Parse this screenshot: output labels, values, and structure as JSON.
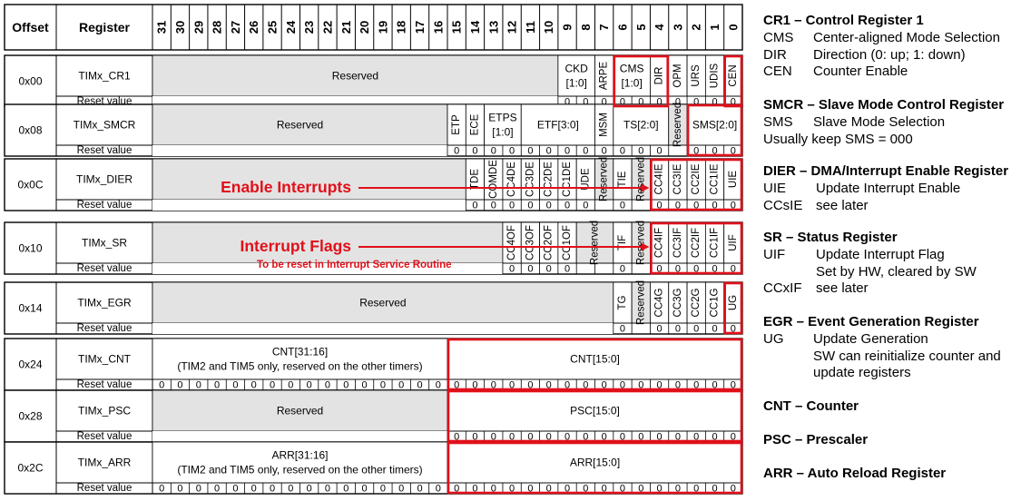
{
  "header": {
    "offset": "Offset",
    "register": "Register",
    "bits": [
      "31",
      "30",
      "29",
      "28",
      "27",
      "26",
      "25",
      "24",
      "23",
      "22",
      "21",
      "20",
      "19",
      "18",
      "17",
      "16",
      "15",
      "14",
      "13",
      "12",
      "11",
      "10",
      "9",
      "8",
      "7",
      "6",
      "5",
      "4",
      "3",
      "2",
      "1",
      "0"
    ]
  },
  "reset_label": "Reset value",
  "rows": [
    {
      "offset": "0x00",
      "name": "TIMx_CR1",
      "fields": [
        {
          "from": 31,
          "to": 10,
          "label": "Reserved",
          "reserved": true
        },
        {
          "from": 9,
          "to": 8,
          "label": "CKD [1:0]"
        },
        {
          "from": 7,
          "to": 7,
          "label": "ARPE",
          "vertical": true
        },
        {
          "from": 6,
          "to": 5,
          "label": "CMS [1:0]"
        },
        {
          "from": 4,
          "to": 4,
          "label": "DIR",
          "vertical": true
        },
        {
          "from": 3,
          "to": 3,
          "label": "OPM",
          "vertical": true
        },
        {
          "from": 2,
          "to": 2,
          "label": "URS",
          "vertical": true
        },
        {
          "from": 1,
          "to": 1,
          "label": "UDIS",
          "vertical": true
        },
        {
          "from": 0,
          "to": 0,
          "label": "CEN",
          "vertical": true
        }
      ],
      "reset": {
        "from": 9,
        "to": 0,
        "value": "0"
      }
    },
    {
      "offset": "0x08",
      "name": "TIMx_SMCR",
      "fields": [
        {
          "from": 31,
          "to": 16,
          "label": "Reserved",
          "reserved": true
        },
        {
          "from": 15,
          "to": 15,
          "label": "ETP",
          "vertical": true
        },
        {
          "from": 14,
          "to": 14,
          "label": "ECE",
          "vertical": true
        },
        {
          "from": 13,
          "to": 12,
          "label": "ETPS [1:0]"
        },
        {
          "from": 11,
          "to": 8,
          "label": "ETF[3:0]"
        },
        {
          "from": 7,
          "to": 7,
          "label": "MSM",
          "vertical": true
        },
        {
          "from": 6,
          "to": 4,
          "label": "TS[2:0]"
        },
        {
          "from": 3,
          "to": 3,
          "label": "Reserved",
          "vertical": true,
          "reserved": true
        },
        {
          "from": 2,
          "to": 0,
          "label": "SMS[2:0]"
        }
      ],
      "reset": {
        "from": 15,
        "to": 0,
        "value": "0",
        "skip": [
          3
        ]
      }
    },
    {
      "offset": "0x0C",
      "name": "TIMx_DIER",
      "fields": [
        {
          "from": 31,
          "to": 15,
          "label": "Reserved",
          "reserved": true,
          "hide_label": true
        },
        {
          "from": 14,
          "to": 14,
          "label": "TDE",
          "vertical": true
        },
        {
          "from": 13,
          "to": 13,
          "label": "COMDE",
          "vertical": true
        },
        {
          "from": 12,
          "to": 12,
          "label": "CC4DE",
          "vertical": true
        },
        {
          "from": 11,
          "to": 11,
          "label": "CC3DE",
          "vertical": true
        },
        {
          "from": 10,
          "to": 10,
          "label": "CC2DE",
          "vertical": true
        },
        {
          "from": 9,
          "to": 9,
          "label": "CC1DE",
          "vertical": true
        },
        {
          "from": 8,
          "to": 8,
          "label": "UDE",
          "vertical": true
        },
        {
          "from": 7,
          "to": 7,
          "label": "Reserved",
          "vertical": true,
          "reserved": true
        },
        {
          "from": 6,
          "to": 6,
          "label": "TIE",
          "vertical": true
        },
        {
          "from": 5,
          "to": 5,
          "label": "Reserved",
          "vertical": true,
          "reserved": true
        },
        {
          "from": 4,
          "to": 4,
          "label": "CC4IE",
          "vertical": true
        },
        {
          "from": 3,
          "to": 3,
          "label": "CC3IE",
          "vertical": true
        },
        {
          "from": 2,
          "to": 2,
          "label": "CC2IE",
          "vertical": true
        },
        {
          "from": 1,
          "to": 1,
          "label": "CC1IE",
          "vertical": true
        },
        {
          "from": 0,
          "to": 0,
          "label": "UIE",
          "vertical": true
        }
      ],
      "reset": {
        "from": 14,
        "to": 0,
        "value": "0",
        "skip": [
          7,
          5
        ]
      }
    },
    {
      "offset": "0x10",
      "name": "TIMx_SR",
      "fields": [
        {
          "from": 31,
          "to": 13,
          "label": "Reserved",
          "reserved": true,
          "hide_label": true
        },
        {
          "from": 12,
          "to": 12,
          "label": "CC4OF",
          "vertical": true
        },
        {
          "from": 11,
          "to": 11,
          "label": "CC3OF",
          "vertical": true
        },
        {
          "from": 10,
          "to": 10,
          "label": "CC2OF",
          "vertical": true
        },
        {
          "from": 9,
          "to": 9,
          "label": "CC1OF",
          "vertical": true
        },
        {
          "from": 8,
          "to": 7,
          "label": "Reserved",
          "vertical": true,
          "reserved": true
        },
        {
          "from": 6,
          "to": 6,
          "label": "TIF",
          "vertical": true
        },
        {
          "from": 5,
          "to": 5,
          "label": "Reserved",
          "vertical": true,
          "reserved": true
        },
        {
          "from": 4,
          "to": 4,
          "label": "CC4IF",
          "vertical": true
        },
        {
          "from": 3,
          "to": 3,
          "label": "CC3IF",
          "vertical": true
        },
        {
          "from": 2,
          "to": 2,
          "label": "CC2IF",
          "vertical": true
        },
        {
          "from": 1,
          "to": 1,
          "label": "CC1IF",
          "vertical": true
        },
        {
          "from": 0,
          "to": 0,
          "label": "UIF",
          "vertical": true
        }
      ],
      "reset": {
        "from": 12,
        "to": 0,
        "value": "0",
        "skip": [
          8,
          7,
          5
        ]
      }
    },
    {
      "offset": "0x14",
      "name": "TIMx_EGR",
      "fields": [
        {
          "from": 31,
          "to": 7,
          "label": "Reserved",
          "reserved": true
        },
        {
          "from": 6,
          "to": 6,
          "label": "TG",
          "vertical": true
        },
        {
          "from": 5,
          "to": 5,
          "label": "Reserved",
          "vertical": true,
          "reserved": true
        },
        {
          "from": 4,
          "to": 4,
          "label": "CC4G",
          "vertical": true
        },
        {
          "from": 3,
          "to": 3,
          "label": "CC3G",
          "vertical": true
        },
        {
          "from": 2,
          "to": 2,
          "label": "CC2G",
          "vertical": true
        },
        {
          "from": 1,
          "to": 1,
          "label": "CC1G",
          "vertical": true
        },
        {
          "from": 0,
          "to": 0,
          "label": "UG",
          "vertical": true
        }
      ],
      "reset": {
        "from": 6,
        "to": 0,
        "value": "0",
        "skip": [
          5
        ]
      }
    },
    {
      "offset": "0x24",
      "name": "TIMx_CNT",
      "fields": [
        {
          "from": 31,
          "to": 16,
          "label": "CNT[31:16]",
          "sub": "(TIM2 and TIM5 only, reserved on the other timers)"
        },
        {
          "from": 15,
          "to": 0,
          "label": "CNT[15:0]"
        }
      ],
      "reset": {
        "from": 31,
        "to": 0,
        "value": "0"
      }
    },
    {
      "offset": "0x28",
      "name": "TIMx_PSC",
      "fields": [
        {
          "from": 31,
          "to": 16,
          "label": "Reserved",
          "reserved": true
        },
        {
          "from": 15,
          "to": 0,
          "label": "PSC[15:0]"
        }
      ],
      "reset": {
        "from": 15,
        "to": 0,
        "value": "0"
      }
    },
    {
      "offset": "0x2C",
      "name": "TIMx_ARR",
      "fields": [
        {
          "from": 31,
          "to": 16,
          "label": "ARR[31:16]",
          "sub": "(TIM2 and TIM5 only, reserved on the other timers)"
        },
        {
          "from": 15,
          "to": 0,
          "label": "ARR[15:0]"
        }
      ],
      "reset": {
        "from": 31,
        "to": 0,
        "value": "0"
      }
    }
  ],
  "highlights": [
    {
      "row": 0,
      "from": 6,
      "to": 4
    },
    {
      "row": 0,
      "from": 0,
      "to": 0
    },
    {
      "row": 1,
      "from": 2,
      "to": 0
    },
    {
      "row": 2,
      "from": 4,
      "to": 0
    },
    {
      "row": 3,
      "from": 4,
      "to": 0
    },
    {
      "row": 4,
      "from": 0,
      "to": 0
    },
    {
      "row": 5,
      "from": 15,
      "to": 0
    },
    {
      "row": 6,
      "from": 15,
      "to": 0
    },
    {
      "row": 7,
      "from": 15,
      "to": 0
    }
  ],
  "annotations": [
    {
      "row": 2,
      "text": "Enable Interrupts",
      "arrow_to_bit": 4
    },
    {
      "row": 3,
      "text": "Interrupt Flags",
      "sub": "To be reset in Interrupt Service Routine",
      "arrow_to_bit": 4
    }
  ],
  "colors": {
    "reserved_fill": "#e3e3e3",
    "highlight": "#e0101a",
    "annotation": "#e0101a",
    "grid": "#000000"
  },
  "legend": [
    {
      "title": "CR1 – Control Register 1",
      "lines": [
        [
          "CMS",
          "Center-aligned Mode Selection"
        ],
        [
          "DIR",
          "Direction (0: up; 1: down)"
        ],
        [
          "CEN",
          "Counter Enable"
        ]
      ]
    },
    {
      "title": "SMCR – Slave Mode Control Register",
      "lines": [
        [
          "SMS",
          "Slave Mode Selection"
        ],
        [
          "",
          "Usually keep SMS = 000"
        ]
      ]
    },
    {
      "title": "DIER – DMA/Interrupt Enable Register",
      "lines": [
        [
          "UIE",
          "Update Interrupt Enable"
        ],
        [
          "CCsIE",
          "see later"
        ]
      ]
    },
    {
      "title": "SR – Status Register",
      "lines": [
        [
          "UIF",
          "Update Interrupt Flag"
        ],
        [
          "",
          "Set by HW, cleared by SW"
        ],
        [
          "CCxIF",
          "see later"
        ]
      ]
    },
    {
      "title": "EGR – Event Generation Register",
      "lines": [
        [
          "UG",
          "Update Generation"
        ],
        [
          "",
          "SW can reinitialize counter and"
        ],
        [
          "",
          "update registers"
        ]
      ]
    },
    {
      "title": "CNT – Counter",
      "lines": []
    },
    {
      "title": "PSC – Prescaler",
      "lines": []
    },
    {
      "title": "ARR – Auto Reload Register",
      "lines": []
    }
  ]
}
